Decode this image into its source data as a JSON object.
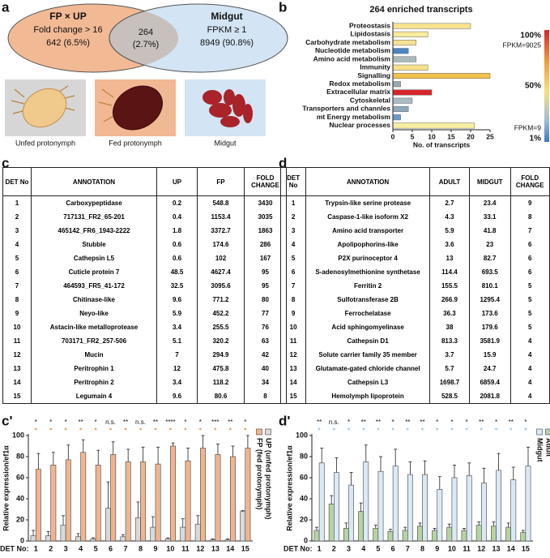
{
  "panel_labels": [
    "a",
    "b",
    "c",
    "d",
    "c'",
    "d'"
  ],
  "venn": {
    "left": {
      "title": "FP × UP",
      "lines": [
        "Fold change > 16",
        "642 (6.5%)"
      ]
    },
    "overlap": [
      "264",
      "(2.7%)"
    ],
    "right": {
      "title": "Midgut",
      "lines": [
        "FPKM ≥ 1",
        "8949 (90.8%)"
      ]
    }
  },
  "images": [
    "Unfed protonymph",
    "Fed protonymph",
    "Midgut"
  ],
  "tables": [
    {
      "header": [
        "DET No",
        "ANNOTATION",
        "UP",
        "FP",
        "FOLD CHANGE"
      ],
      "rows": [
        [
          1,
          "Carboxypeptidase",
          0.2,
          548.8,
          3430
        ],
        [
          2,
          "717131_FR2_65-201",
          0.4,
          1153.4,
          3035
        ],
        [
          3,
          "465142_FR6_1943-2222",
          1.8,
          3372.7,
          1863
        ],
        [
          4,
          "Stubble",
          0.6,
          174.6,
          286
        ],
        [
          5,
          "Cathepsin L5",
          0.6,
          102,
          167
        ],
        [
          6,
          "Cuticle protein 7",
          48.5,
          4627.4,
          95
        ],
        [
          7,
          "464593_FR5_41-172",
          32.5,
          3095.6,
          95
        ],
        [
          8,
          "Chitinase-like",
          9.6,
          771.2,
          80
        ],
        [
          9,
          "Neyo-like",
          5.9,
          452.2,
          77
        ],
        [
          10,
          "Astacin-like metalloprotease",
          3.4,
          255.5,
          76
        ],
        [
          11,
          "703171_FR2_257-506",
          5.1,
          320.2,
          63
        ],
        [
          12,
          "Mucin",
          7,
          294.9,
          42
        ],
        [
          13,
          "Peritrophin 1",
          12,
          475.8,
          40
        ],
        [
          14,
          "Peritrophin 2",
          3.4,
          118.2,
          34
        ],
        [
          15,
          "Legumain 4",
          9.6,
          80.6,
          8
        ]
      ]
    },
    {
      "header": [
        "DET No",
        "ANNOTATION",
        "ADULT",
        "MIDGUT",
        "FOLD CHANGE"
      ],
      "rows": [
        [
          1,
          "Trypsin-like serine protease",
          2.7,
          23.4,
          9
        ],
        [
          2,
          "Caspase-1-like isoform X2",
          4.3,
          33.1,
          8
        ],
        [
          3,
          "Amino acid transporter",
          5.9,
          41.8,
          7
        ],
        [
          4,
          "Apolipophorins-like",
          3.6,
          23,
          6
        ],
        [
          5,
          "P2X purinoceptor 4",
          13,
          82.7,
          6
        ],
        [
          6,
          "S-adenosylmethionine synthetase",
          114.4,
          693.5,
          6
        ],
        [
          7,
          "Ferritin 2",
          155.5,
          810.1,
          5
        ],
        [
          8,
          "Sulfotransferase 2B",
          266.9,
          1295.4,
          5
        ],
        [
          9,
          "Ferrochelatase",
          36.3,
          173.6,
          5
        ],
        [
          10,
          "Acid sphingomyelinase",
          38,
          179.6,
          5
        ],
        [
          11,
          "Cathepsin D1",
          813.3,
          3581.9,
          4
        ],
        [
          12,
          "Solute carrier family 35 member",
          3.7,
          15.9,
          4
        ],
        [
          13,
          "Glutamate-gated chloride channel",
          5.7,
          24.7,
          4
        ],
        [
          14,
          "Cathepsin L3",
          1698.7,
          6859.4,
          4
        ],
        [
          15,
          "Hemolymph lipoprotein",
          528.5,
          2081.8,
          4
        ]
      ]
    }
  ],
  "chart_data": [
    {
      "type": "bar",
      "orientation": "horizontal",
      "title": "264 enriched transcripts",
      "x_label": "No. of transcripts",
      "categories": [
        "Proteostasis",
        "Lipidostasis",
        "Carbohydrate metabolism",
        "Nucleotide metabolism",
        "Amino acid metabolism",
        "Immunity",
        "Signalling",
        "Redox metabolism",
        "Extracellular matrix",
        "Cytoskeletal",
        "Transporters and channles",
        "mt Energy metabolism",
        "Nuclear processes"
      ],
      "values": [
        20,
        9,
        6,
        4,
        6,
        9,
        25,
        2,
        10,
        5,
        4,
        2,
        21
      ],
      "colors": [
        "#f7e38e",
        "#f8eb9c",
        "#f5e196",
        "#4b86c4",
        "#aab8bc",
        "#f7e08a",
        "#f1c24c",
        "#9aa9b0",
        "#d7262a",
        "#a9bcc6",
        "#8ea9bb",
        "#6d9ccb",
        "#f8eea3"
      ],
      "xlim": [
        0,
        25
      ],
      "xticks": [
        0,
        5,
        10,
        15,
        20,
        25
      ],
      "colorbar_labels": [
        "100%",
        "FPKM=9025",
        "50%",
        "FPKM=9",
        "1%"
      ]
    },
    {
      "type": "bar",
      "y_label": "Relative expression/ef1α",
      "x_prefix": "DET No:",
      "categories": [
        "1",
        "2",
        "3",
        "4",
        "5",
        "6",
        "7",
        "8",
        "9",
        "10",
        "11",
        "12",
        "13",
        "14",
        "15"
      ],
      "series": [
        {
          "name": "UP (unfed protonymph)",
          "color": "#d9d9d9",
          "values": [
            5,
            5,
            15,
            4,
            2,
            31,
            4,
            22,
            13,
            2,
            13,
            16,
            1,
            1,
            28
          ],
          "errors": [
            5,
            4,
            9,
            3,
            1,
            25,
            2,
            15,
            10,
            1,
            8,
            8,
            1,
            1,
            1
          ]
        },
        {
          "name": "FP (fed protonymph)",
          "color": "#f0b58f",
          "values": [
            68,
            72,
            77,
            84,
            72,
            82,
            75,
            75,
            73,
            90,
            76,
            88,
            82,
            80,
            88
          ],
          "errors": [
            15,
            12,
            14,
            12,
            14,
            12,
            12,
            14,
            16,
            3,
            12,
            12,
            10,
            10,
            12
          ]
        }
      ],
      "significance": [
        "*",
        "*",
        "*",
        "**",
        "*",
        "n.s.",
        "**",
        "n.s.",
        "**",
        "****",
        "*",
        "*",
        "***",
        "**",
        "*"
      ],
      "ylim": [
        0,
        100
      ],
      "yticks": [
        0,
        20,
        40,
        60,
        80,
        100
      ]
    },
    {
      "type": "bar",
      "y_label": "Relative expression/ef1α",
      "x_prefix": "DET No:",
      "categories": [
        "1",
        "2",
        "3",
        "4",
        "5",
        "6",
        "7",
        "8",
        "9",
        "10",
        "11",
        "12",
        "13",
        "14",
        "15"
      ],
      "series": [
        {
          "name": "Adult",
          "color": "#b7d3a4",
          "values": [
            10,
            35,
            12,
            28,
            12,
            9,
            10,
            14,
            10,
            13,
            10,
            15,
            14,
            13,
            8
          ],
          "errors": [
            3,
            8,
            5,
            8,
            3,
            2,
            3,
            3,
            2,
            3,
            2,
            3,
            4,
            4,
            2
          ]
        },
        {
          "name": "Midgut",
          "color": "#dbe9f6",
          "values": [
            74,
            65,
            53,
            75,
            66,
            71,
            63,
            63,
            49,
            60,
            62,
            55,
            67,
            58,
            71
          ],
          "errors": [
            14,
            14,
            12,
            16,
            14,
            16,
            12,
            13,
            12,
            12,
            12,
            14,
            16,
            12,
            18
          ]
        }
      ],
      "significance": [
        "**",
        "n.s.",
        "*",
        "**",
        "**",
        "*",
        "**",
        "**",
        "*",
        "*",
        "*",
        "**",
        "*",
        "**",
        "*"
      ],
      "ylim": [
        0,
        100
      ],
      "yticks": [
        0,
        20,
        40,
        60,
        80,
        100
      ]
    }
  ]
}
